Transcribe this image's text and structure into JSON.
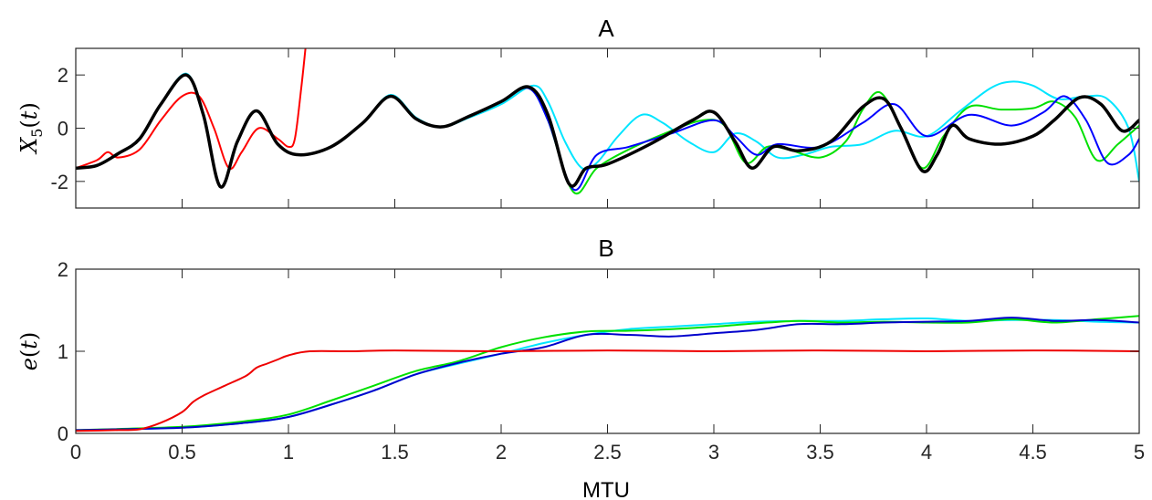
{
  "chart_data": [
    {
      "type": "line",
      "title": "A",
      "xlabel": "",
      "ylabel": "X_5(t)",
      "xlim": [
        0,
        5
      ],
      "ylim": [
        -3,
        3
      ],
      "xticks": [
        0,
        0.5,
        1,
        1.5,
        2,
        2.5,
        3,
        3.5,
        4,
        4.5,
        5
      ],
      "xtick_labels": [
        "",
        "",
        "",
        "",
        "",
        "",
        "",
        "",
        "",
        "",
        ""
      ],
      "yticks": [
        -2,
        0,
        2
      ],
      "ytick_labels": [
        "-2",
        "0",
        "2"
      ],
      "grid": false,
      "legend": "none",
      "series": [
        {
          "color": "#ff0000",
          "width": 2,
          "x": [
            0,
            0.1,
            0.15,
            0.2,
            0.3,
            0.4,
            0.5,
            0.58,
            0.65,
            0.72,
            0.78,
            0.86,
            0.95,
            1.0,
            1.03,
            1.06,
            1.08
          ],
          "y": [
            -1.5,
            -1.2,
            -0.9,
            -1.1,
            -0.8,
            0.3,
            1.2,
            1.2,
            0.0,
            -1.5,
            -0.9,
            0.0,
            -0.4,
            -0.7,
            -0.4,
            1.5,
            3.0
          ]
        },
        {
          "color": "#00e5ff",
          "width": 2,
          "x": [
            0,
            0.1,
            0.2,
            0.3,
            0.4,
            0.52,
            0.6,
            0.68,
            0.76,
            0.85,
            0.95,
            1.05,
            1.2,
            1.35,
            1.48,
            1.6,
            1.72,
            1.85,
            2.0,
            2.15,
            2.22,
            2.3,
            2.38,
            2.45,
            2.55,
            2.66,
            2.76,
            2.88,
            3.0,
            3.1,
            3.2,
            3.3,
            3.42,
            3.55,
            3.7,
            3.85,
            4.0,
            4.15,
            4.3,
            4.4,
            4.5,
            4.62,
            4.75,
            4.85,
            4.95,
            5.0
          ],
          "y": [
            -1.5,
            -1.4,
            -0.95,
            -0.4,
            0.9,
            2.05,
            0.5,
            -2.2,
            -0.5,
            0.65,
            -0.6,
            -1.0,
            -0.7,
            0.2,
            1.25,
            0.4,
            0.05,
            0.4,
            0.9,
            1.6,
            1.0,
            -0.5,
            -1.5,
            -1.3,
            -0.3,
            0.5,
            0.2,
            -0.5,
            -0.9,
            -0.2,
            -0.5,
            -1.1,
            -1.0,
            -0.7,
            -0.6,
            -0.1,
            -0.3,
            0.6,
            1.5,
            1.75,
            1.6,
            1.1,
            1.2,
            1.1,
            0.0,
            -2.0
          ]
        },
        {
          "color": "#00e000",
          "width": 2,
          "x": [
            0,
            0.1,
            0.2,
            0.3,
            0.4,
            0.52,
            0.6,
            0.68,
            0.76,
            0.85,
            0.95,
            1.05,
            1.2,
            1.35,
            1.48,
            1.6,
            1.72,
            1.85,
            2.0,
            2.13,
            2.22,
            2.34,
            2.45,
            2.6,
            2.8,
            2.95,
            3.05,
            3.15,
            3.25,
            3.35,
            3.5,
            3.62,
            3.7,
            3.78,
            3.87,
            3.98,
            4.08,
            4.2,
            4.35,
            4.5,
            4.6,
            4.7,
            4.8,
            4.9,
            5.0
          ],
          "y": [
            -1.5,
            -1.4,
            -0.95,
            -0.4,
            0.9,
            2.0,
            0.5,
            -2.2,
            -0.5,
            0.65,
            -0.6,
            -1.0,
            -0.7,
            0.2,
            1.2,
            0.35,
            0.05,
            0.45,
            1.0,
            1.5,
            0.3,
            -2.4,
            -1.5,
            -0.8,
            -0.1,
            0.3,
            0.1,
            -1.3,
            -0.7,
            -0.8,
            -1.1,
            -0.5,
            0.7,
            1.35,
            0.2,
            -1.5,
            -0.3,
            0.8,
            0.7,
            0.75,
            1.0,
            0.4,
            -1.2,
            -0.6,
            0.1
          ]
        },
        {
          "color": "#0000ff",
          "width": 2,
          "x": [
            0,
            0.1,
            0.2,
            0.3,
            0.4,
            0.52,
            0.6,
            0.68,
            0.76,
            0.85,
            0.95,
            1.05,
            1.2,
            1.35,
            1.48,
            1.6,
            1.72,
            1.85,
            2.0,
            2.13,
            2.22,
            2.34,
            2.45,
            2.6,
            2.8,
            3.0,
            3.1,
            3.2,
            3.3,
            3.5,
            3.7,
            3.85,
            4.0,
            4.2,
            4.4,
            4.55,
            4.65,
            4.75,
            4.85,
            4.95,
            5.0
          ],
          "y": [
            -1.5,
            -1.4,
            -0.95,
            -0.4,
            0.9,
            2.0,
            0.5,
            -2.2,
            -0.5,
            0.65,
            -0.6,
            -1.0,
            -0.7,
            0.2,
            1.2,
            0.35,
            0.05,
            0.45,
            1.0,
            1.5,
            0.3,
            -2.3,
            -1.0,
            -0.7,
            -0.2,
            0.3,
            -0.3,
            -1.0,
            -0.6,
            -0.7,
            0.2,
            0.9,
            -0.3,
            0.5,
            0.1,
            0.6,
            1.2,
            0.3,
            -1.3,
            -1.0,
            -0.4
          ]
        },
        {
          "color": "#000000",
          "width": 3.5,
          "x": [
            0,
            0.1,
            0.2,
            0.3,
            0.4,
            0.52,
            0.6,
            0.68,
            0.76,
            0.85,
            0.95,
            1.05,
            1.2,
            1.35,
            1.48,
            1.6,
            1.72,
            1.85,
            2.0,
            2.13,
            2.22,
            2.32,
            2.4,
            2.5,
            2.7,
            2.9,
            3.0,
            3.1,
            3.18,
            3.28,
            3.4,
            3.55,
            3.7,
            3.8,
            3.88,
            3.98,
            4.05,
            4.12,
            4.2,
            4.35,
            4.5,
            4.6,
            4.72,
            4.82,
            4.92,
            5.0
          ],
          "y": [
            -1.5,
            -1.4,
            -0.95,
            -0.4,
            0.9,
            2.0,
            0.5,
            -2.2,
            -0.5,
            0.65,
            -0.6,
            -1.0,
            -0.7,
            0.2,
            1.2,
            0.35,
            0.05,
            0.45,
            1.0,
            1.55,
            0.5,
            -2.1,
            -1.5,
            -1.35,
            -0.6,
            0.3,
            0.6,
            -0.5,
            -1.5,
            -0.7,
            -0.85,
            -0.5,
            0.8,
            1.1,
            0.0,
            -1.6,
            -1.0,
            0.1,
            -0.4,
            -0.6,
            -0.3,
            0.3,
            1.15,
            0.9,
            -0.1,
            0.3
          ]
        }
      ]
    },
    {
      "type": "line",
      "title": "B",
      "xlabel": "MTU",
      "ylabel": "e(t)",
      "xlim": [
        0,
        5
      ],
      "ylim": [
        0,
        2
      ],
      "xticks": [
        0,
        0.5,
        1,
        1.5,
        2,
        2.5,
        3,
        3.5,
        4,
        4.5,
        5
      ],
      "xtick_labels": [
        "0",
        "0.5",
        "1",
        "1.5",
        "2",
        "2.5",
        "3",
        "3.5",
        "4",
        "4.5",
        "5"
      ],
      "yticks": [
        0,
        1,
        2
      ],
      "ytick_labels": [
        "0",
        "1",
        "2"
      ],
      "grid": false,
      "legend": "none",
      "series": [
        {
          "color": "#00e5ff",
          "width": 2,
          "x": [
            0,
            0.5,
            0.8,
            1.0,
            1.2,
            1.4,
            1.6,
            1.8,
            2.0,
            2.2,
            2.4,
            2.6,
            2.8,
            3.0,
            3.2,
            3.4,
            3.6,
            3.8,
            4.0,
            4.2,
            4.4,
            4.6,
            4.8,
            5.0
          ],
          "y": [
            0.04,
            0.07,
            0.13,
            0.2,
            0.35,
            0.52,
            0.72,
            0.85,
            0.97,
            1.1,
            1.2,
            1.27,
            1.3,
            1.33,
            1.36,
            1.37,
            1.37,
            1.39,
            1.4,
            1.37,
            1.38,
            1.38,
            1.36,
            1.35
          ]
        },
        {
          "color": "#00e000",
          "width": 2,
          "x": [
            0,
            0.5,
            0.8,
            1.0,
            1.2,
            1.4,
            1.6,
            1.8,
            2.0,
            2.2,
            2.4,
            2.6,
            2.8,
            3.0,
            3.2,
            3.4,
            3.6,
            3.8,
            4.0,
            4.2,
            4.4,
            4.6,
            4.8,
            5.0
          ],
          "y": [
            0.04,
            0.08,
            0.15,
            0.23,
            0.4,
            0.58,
            0.76,
            0.88,
            1.05,
            1.17,
            1.24,
            1.25,
            1.27,
            1.3,
            1.34,
            1.37,
            1.35,
            1.36,
            1.35,
            1.35,
            1.39,
            1.35,
            1.39,
            1.43
          ]
        },
        {
          "color": "#0000cc",
          "width": 2,
          "x": [
            0,
            0.5,
            0.8,
            1.0,
            1.2,
            1.4,
            1.6,
            1.8,
            2.0,
            2.2,
            2.4,
            2.6,
            2.8,
            3.0,
            3.2,
            3.4,
            3.6,
            3.8,
            4.0,
            4.2,
            4.4,
            4.6,
            4.8,
            5.0
          ],
          "y": [
            0.04,
            0.07,
            0.13,
            0.2,
            0.35,
            0.52,
            0.72,
            0.86,
            0.97,
            1.05,
            1.2,
            1.2,
            1.18,
            1.22,
            1.26,
            1.33,
            1.33,
            1.35,
            1.36,
            1.37,
            1.41,
            1.37,
            1.38,
            1.35
          ]
        },
        {
          "color": "#ee0000",
          "width": 2,
          "x": [
            0,
            0.2,
            0.3,
            0.4,
            0.5,
            0.55,
            0.6,
            0.7,
            0.8,
            0.85,
            0.9,
            0.95,
            1.0,
            1.1,
            1.3,
            1.5,
            2.0,
            2.5,
            3.0,
            3.5,
            4.0,
            4.5,
            5.0
          ],
          "y": [
            0.03,
            0.04,
            0.05,
            0.13,
            0.26,
            0.38,
            0.46,
            0.58,
            0.7,
            0.8,
            0.85,
            0.9,
            0.95,
            1.0,
            1.0,
            1.01,
            1.0,
            1.01,
            1.0,
            1.01,
            1.0,
            1.01,
            1.0
          ]
        }
      ]
    }
  ]
}
